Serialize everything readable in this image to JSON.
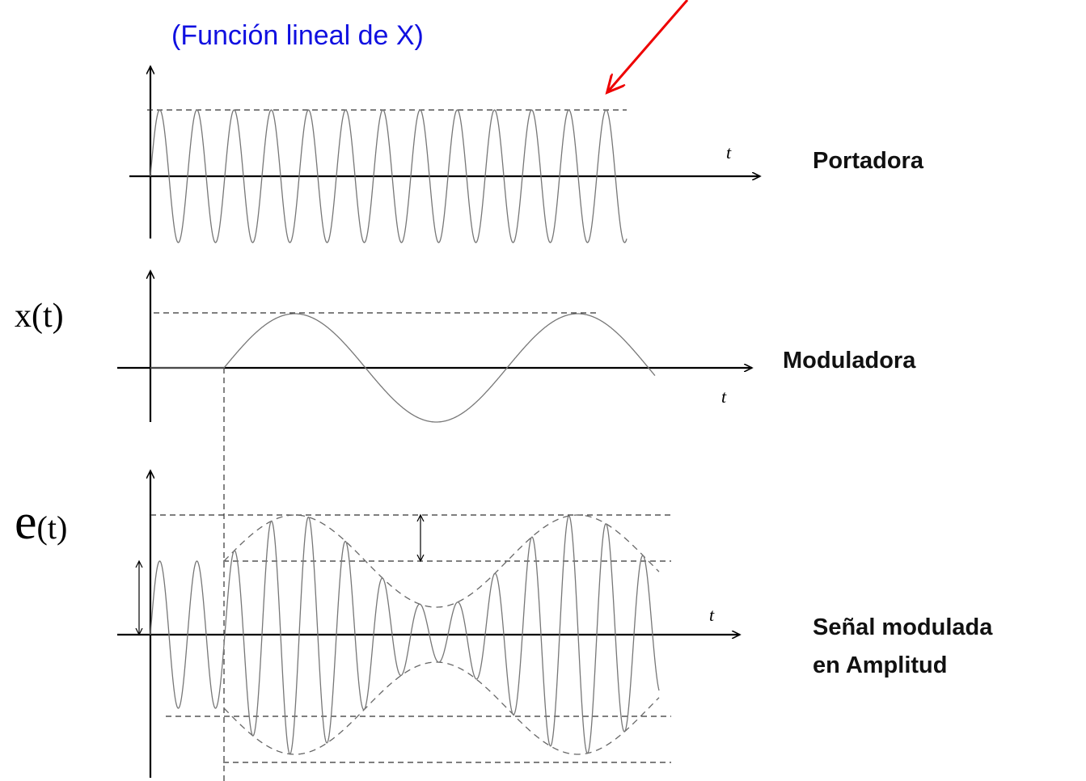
{
  "annotation": "(Función lineal de X)",
  "panels": [
    {
      "label": "Portadora",
      "axis_label": "t"
    },
    {
      "label": "Moduladora",
      "axis_label": "t",
      "signal_label": "x(t)"
    },
    {
      "label_lines": [
        "Señal modulada",
        "en Amplitud"
      ],
      "axis_label": "t",
      "signal_label": {
        "letter": "e",
        "argument": "(t)"
      }
    }
  ]
}
